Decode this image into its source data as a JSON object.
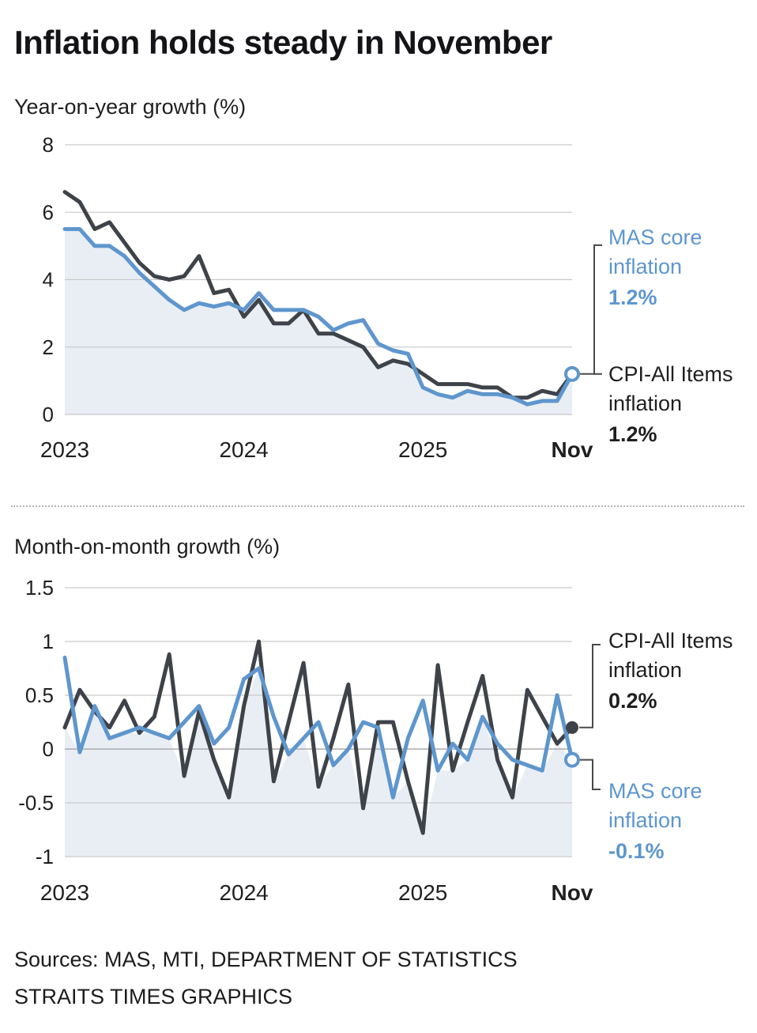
{
  "page": {
    "title": "Inflation holds steady in November",
    "sources_line1": "Sources: MAS, MTI, DEPARTMENT OF STATISTICS",
    "sources_line2": "STRAITS TIMES GRAPHICS"
  },
  "colors": {
    "cpi_line": "#3e434a",
    "core_line": "#5e96cd",
    "grid": "#c9c9c9",
    "zero_line": "#ababab",
    "area_fill": "#e9eef4",
    "text": "#1f1f1f",
    "connector": "#4a4a4a"
  },
  "chart_data": [
    {
      "id": "yoy",
      "type": "line",
      "title": "Year-on-year growth (%)",
      "x_range": "Jan 2023 - Nov 2025, monthly",
      "x_tick_labels": [
        "2023",
        "2024",
        "2025",
        "Nov"
      ],
      "x_tick_positions": [
        0,
        12,
        24,
        34
      ],
      "x_tick_bold": [
        false,
        false,
        false,
        true
      ],
      "y_ticks": [
        8,
        6,
        4,
        2,
        0
      ],
      "ylim": [
        0,
        8
      ],
      "grid": true,
      "legend_position": "right-annotations",
      "series": [
        {
          "name": "CPI-All Items inflation",
          "color": "#3e434a",
          "values": [
            6.6,
            6.3,
            5.5,
            5.7,
            5.1,
            4.5,
            4.1,
            4.0,
            4.1,
            4.7,
            3.6,
            3.7,
            2.9,
            3.4,
            2.7,
            2.7,
            3.1,
            2.4,
            2.4,
            2.2,
            2.0,
            1.4,
            1.6,
            1.5,
            1.2,
            0.9,
            0.9,
            0.9,
            0.8,
            0.8,
            0.5,
            0.5,
            0.7,
            0.6,
            1.2
          ]
        },
        {
          "name": "MAS core inflation",
          "color": "#5e96cd",
          "values": [
            5.5,
            5.5,
            5.0,
            5.0,
            4.7,
            4.2,
            3.8,
            3.4,
            3.1,
            3.3,
            3.2,
            3.3,
            3.1,
            3.6,
            3.1,
            3.1,
            3.1,
            2.9,
            2.5,
            2.7,
            2.8,
            2.1,
            1.9,
            1.8,
            0.8,
            0.6,
            0.5,
            0.7,
            0.6,
            0.6,
            0.5,
            0.3,
            0.4,
            0.4,
            1.2
          ]
        }
      ],
      "annotations": {
        "core_label": "MAS core inflation",
        "core_value": "1.2%",
        "cpi_label": "CPI-All Items inflation",
        "cpi_value": "1.2%"
      }
    },
    {
      "id": "mom",
      "type": "line",
      "title": "Month-on-month growth (%)",
      "x_range": "Jan 2023 - Nov 2025, monthly",
      "x_tick_labels": [
        "2023",
        "2024",
        "2025",
        "Nov"
      ],
      "x_tick_positions": [
        0,
        12,
        24,
        34
      ],
      "x_tick_bold": [
        false,
        false,
        false,
        true
      ],
      "y_ticks": [
        1.5,
        1,
        0.5,
        0,
        -0.5,
        -1
      ],
      "ylim": [
        -1,
        1.5
      ],
      "grid": true,
      "legend_position": "right-annotations",
      "series": [
        {
          "name": "CPI-All Items inflation",
          "color": "#3e434a",
          "values": [
            0.2,
            0.55,
            0.35,
            0.2,
            0.45,
            0.15,
            0.3,
            0.88,
            -0.25,
            0.35,
            -0.1,
            -0.45,
            0.4,
            1.0,
            -0.3,
            0.25,
            0.8,
            -0.35,
            0.1,
            0.6,
            -0.55,
            0.25,
            0.25,
            -0.3,
            -0.78,
            0.78,
            -0.2,
            0.25,
            0.68,
            -0.1,
            -0.45,
            0.55,
            0.3,
            0.05,
            0.2
          ]
        },
        {
          "name": "MAS core inflation",
          "color": "#5e96cd",
          "values": [
            0.85,
            -0.03,
            0.4,
            0.1,
            0.15,
            0.2,
            0.15,
            0.1,
            0.25,
            0.4,
            0.05,
            0.2,
            0.65,
            0.75,
            0.3,
            -0.05,
            0.1,
            0.25,
            -0.15,
            0.0,
            0.25,
            0.2,
            -0.45,
            0.1,
            0.45,
            -0.2,
            0.05,
            -0.1,
            0.3,
            0.05,
            -0.1,
            -0.15,
            -0.2,
            0.5,
            -0.1
          ]
        }
      ],
      "annotations": {
        "cpi_label": "CPI-All Items inflation",
        "cpi_value": "0.2%",
        "core_label": "MAS core inflation",
        "core_value": "-0.1%"
      }
    }
  ]
}
